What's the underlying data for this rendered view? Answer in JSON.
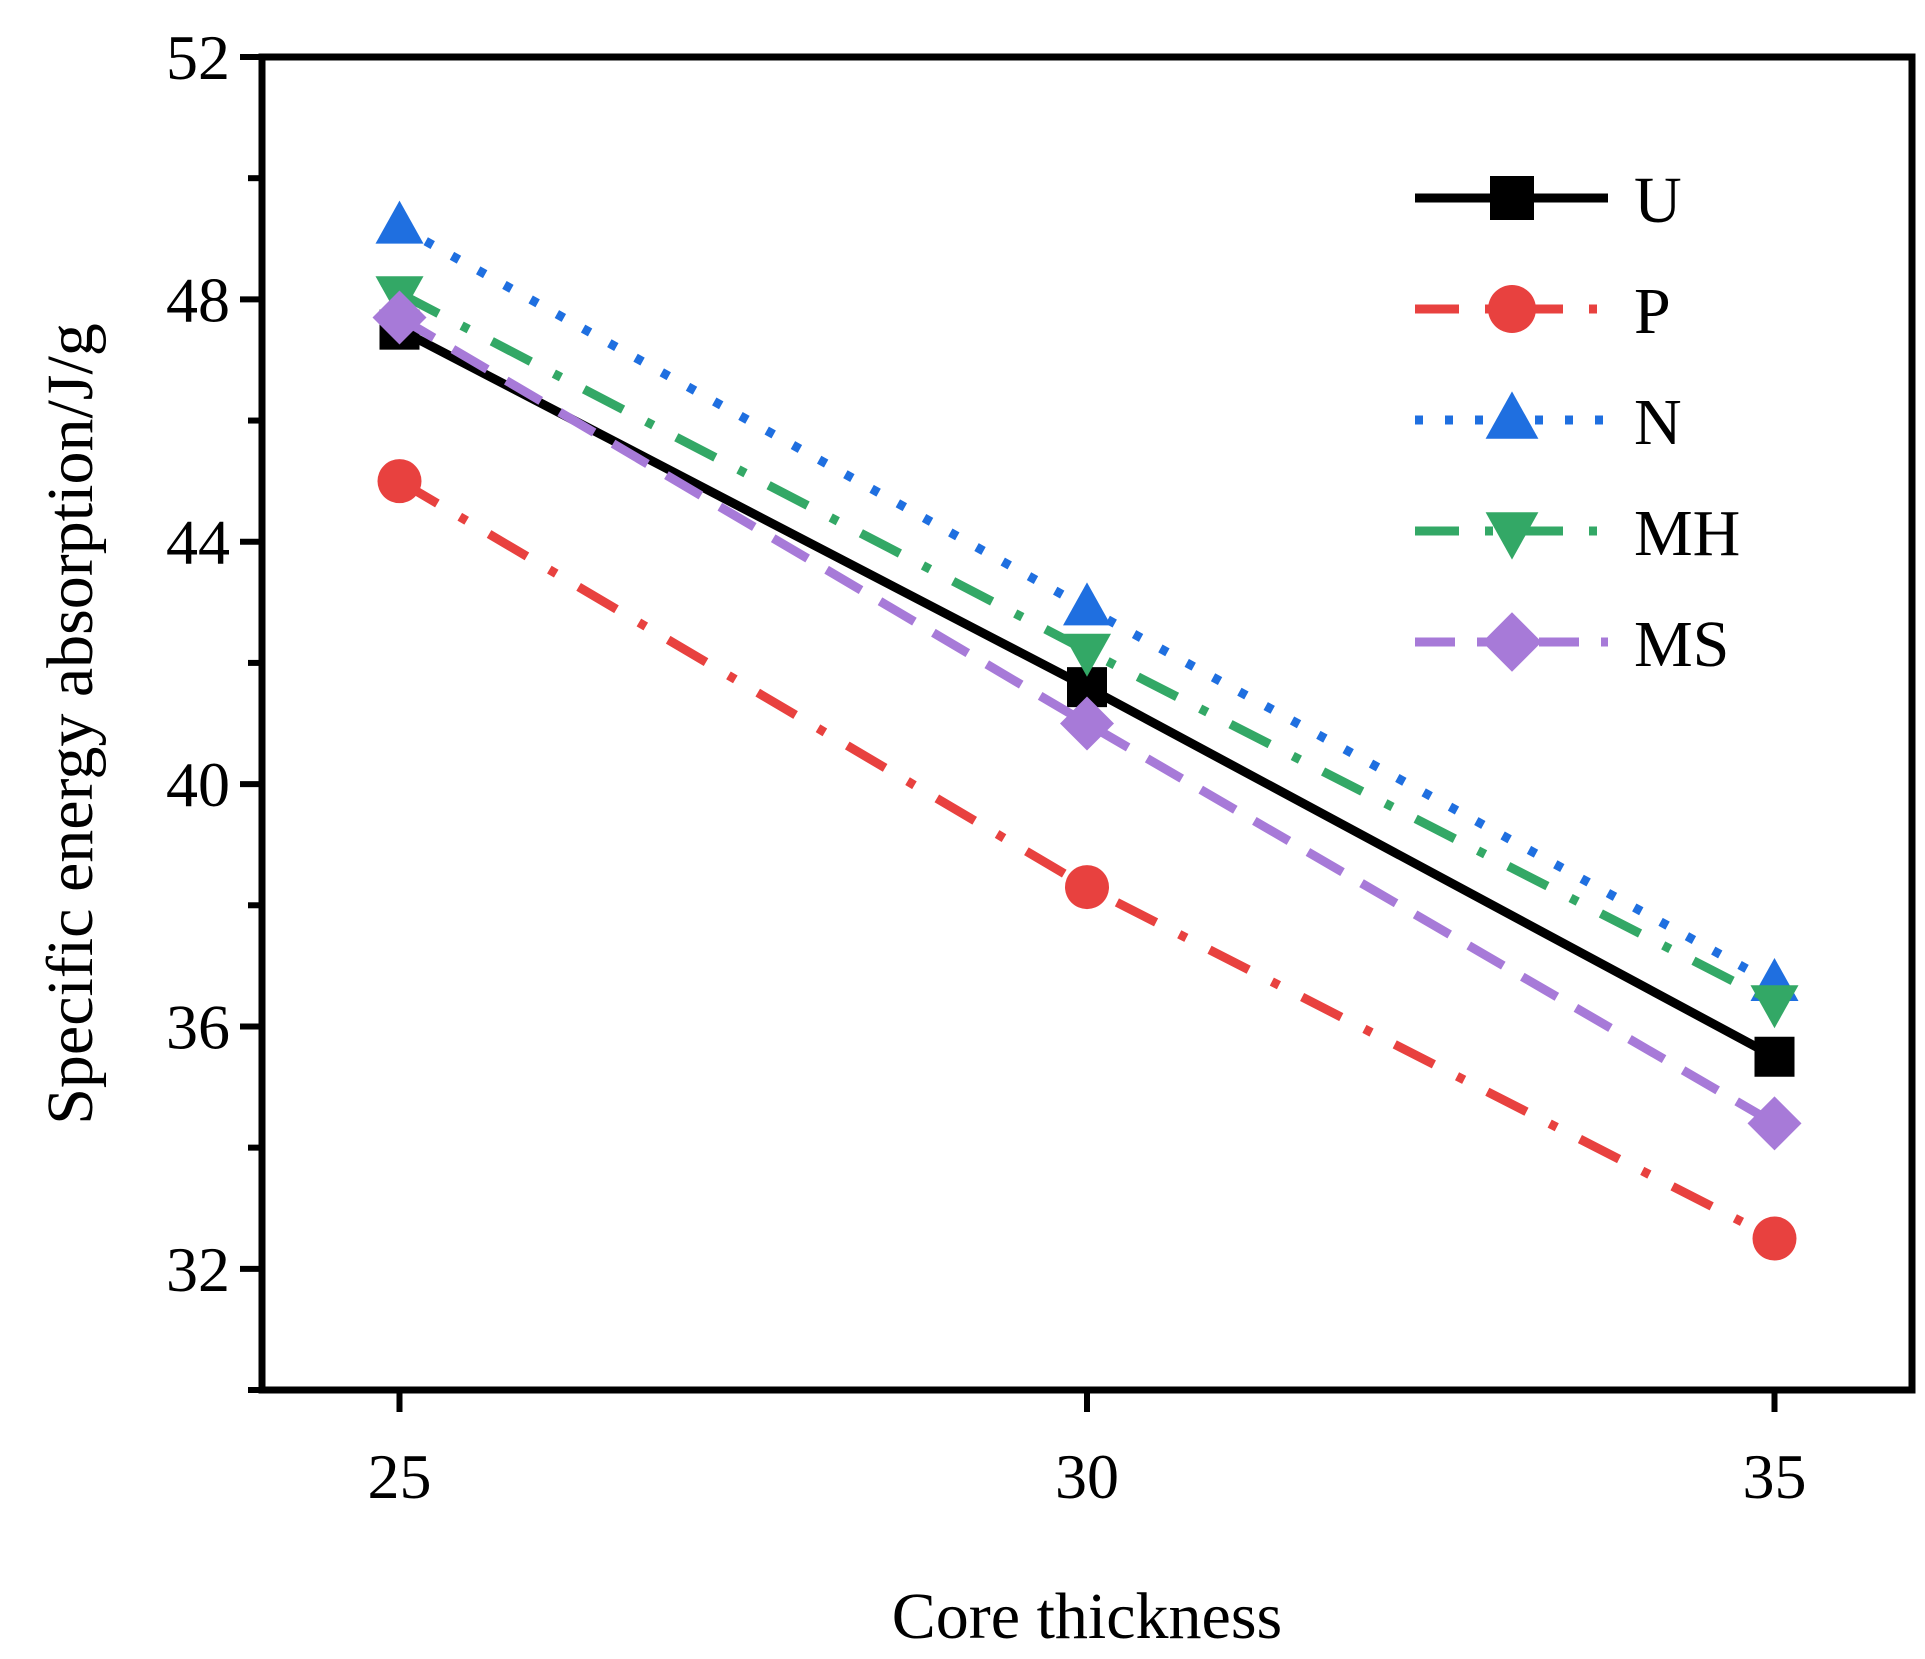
{
  "chart_data": {
    "type": "line",
    "title": "",
    "xlabel": "Core thickness",
    "ylabel": "Specific energy absorption/J/g",
    "x": [
      25,
      30,
      35
    ],
    "xlim": [
      24,
      36
    ],
    "ylim": [
      30,
      52
    ],
    "yticks": [
      32,
      36,
      40,
      44,
      48,
      52
    ],
    "xticks": [
      25,
      30,
      35
    ],
    "legend_position": "top-right",
    "grid": false,
    "series": [
      {
        "name": "U",
        "values": [
          47.5,
          41.6,
          35.5
        ],
        "color": "#000000",
        "marker": "square",
        "line": "solid"
      },
      {
        "name": "P",
        "values": [
          45.0,
          38.3,
          32.5
        ],
        "color": "#e8413f",
        "marker": "circle",
        "line": "dashdot"
      },
      {
        "name": "N",
        "values": [
          49.2,
          42.9,
          36.7
        ],
        "color": "#1f6fe0",
        "marker": "triangle-up",
        "line": "dot"
      },
      {
        "name": "MH",
        "values": [
          48.1,
          42.2,
          36.4
        ],
        "color": "#33a866",
        "marker": "triangle-down",
        "line": "dashdot"
      },
      {
        "name": "MS",
        "values": [
          47.7,
          41.0,
          34.4
        ],
        "color": "#a77ad8",
        "marker": "diamond",
        "line": "dash"
      }
    ]
  }
}
